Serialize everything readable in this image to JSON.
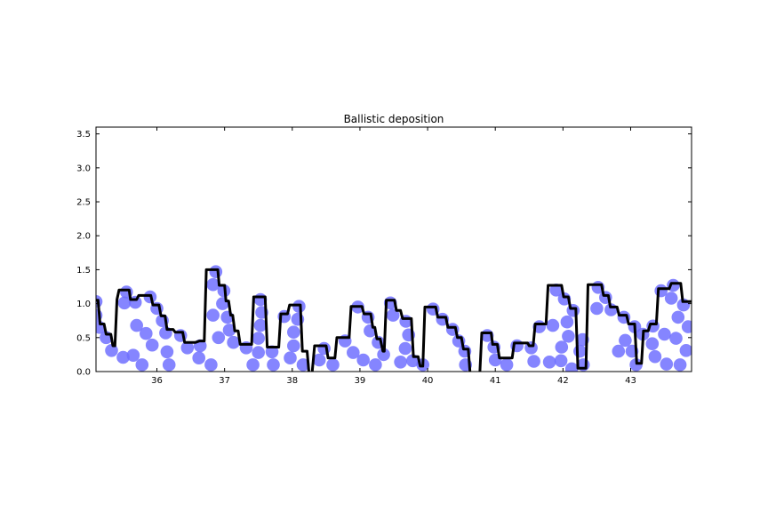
{
  "chart_data": {
    "type": "scatter",
    "title": "Ballistic deposition",
    "xlabel": "",
    "ylabel": "",
    "xlim": [
      35.1,
      43.9
    ],
    "ylim": [
      0.0,
      3.6
    ],
    "xticks": [
      "36",
      "37",
      "38",
      "39",
      "40",
      "41",
      "42",
      "43"
    ],
    "yticks": [
      "0.0",
      "0.5",
      "1.0",
      "1.5",
      "2.0",
      "2.5",
      "3.0",
      "3.5"
    ],
    "grid": false,
    "legend": "none",
    "colors": {
      "particles": "#7070ff",
      "surface": "#000000"
    },
    "series": [
      {
        "type": "scatter",
        "points": [
          [
            35.1,
            1.03
          ],
          [
            35.1,
            0.83
          ],
          [
            35.15,
            0.65
          ],
          [
            35.25,
            0.5
          ],
          [
            35.33,
            0.31
          ],
          [
            35.5,
            0.21
          ],
          [
            35.52,
            1.01
          ],
          [
            35.55,
            1.17
          ],
          [
            35.65,
            0.24
          ],
          [
            35.68,
            1.02
          ],
          [
            35.7,
            0.68
          ],
          [
            35.78,
            0.1
          ],
          [
            35.84,
            0.56
          ],
          [
            35.9,
            1.1
          ],
          [
            35.93,
            0.39
          ],
          [
            36.0,
            0.93
          ],
          [
            36.08,
            0.75
          ],
          [
            36.13,
            0.57
          ],
          [
            36.15,
            0.29
          ],
          [
            36.18,
            0.1
          ],
          [
            36.35,
            0.53
          ],
          [
            36.45,
            0.35
          ],
          [
            36.62,
            0.2
          ],
          [
            36.64,
            0.38
          ],
          [
            36.8,
            0.1
          ],
          [
            36.83,
            1.28
          ],
          [
            36.87,
            1.47
          ],
          [
            36.83,
            0.83
          ],
          [
            36.91,
            0.5
          ],
          [
            36.97,
            1.0
          ],
          [
            36.99,
            1.19
          ],
          [
            37.04,
            0.8
          ],
          [
            37.07,
            0.61
          ],
          [
            37.13,
            0.43
          ],
          [
            37.32,
            0.35
          ],
          [
            37.42,
            0.1
          ],
          [
            37.5,
            0.28
          ],
          [
            37.5,
            0.49
          ],
          [
            37.53,
            0.68
          ],
          [
            37.55,
            0.87
          ],
          [
            37.53,
            1.06
          ],
          [
            37.7,
            0.29
          ],
          [
            37.72,
            0.1
          ],
          [
            37.88,
            0.81
          ],
          [
            37.97,
            0.2
          ],
          [
            38.02,
            0.38
          ],
          [
            38.02,
            0.58
          ],
          [
            38.08,
            0.77
          ],
          [
            38.1,
            0.96
          ],
          [
            38.16,
            0.1
          ],
          [
            38.4,
            0.17
          ],
          [
            38.47,
            0.34
          ],
          [
            38.6,
            0.1
          ],
          [
            38.78,
            0.45
          ],
          [
            38.9,
            0.28
          ],
          [
            38.97,
            0.95
          ],
          [
            39.05,
            0.17
          ],
          [
            39.12,
            0.8
          ],
          [
            39.15,
            0.6
          ],
          [
            39.23,
            0.1
          ],
          [
            39.27,
            0.43
          ],
          [
            39.35,
            0.25
          ],
          [
            39.45,
            1.01
          ],
          [
            39.49,
            0.83
          ],
          [
            39.6,
            0.14
          ],
          [
            39.67,
            0.34
          ],
          [
            39.68,
            0.74
          ],
          [
            39.72,
            0.54
          ],
          [
            39.78,
            0.16
          ],
          [
            39.93,
            0.1
          ],
          [
            40.08,
            0.92
          ],
          [
            40.22,
            0.77
          ],
          [
            40.37,
            0.62
          ],
          [
            40.46,
            0.45
          ],
          [
            40.55,
            0.3
          ],
          [
            40.56,
            0.1
          ],
          [
            40.88,
            0.53
          ],
          [
            40.98,
            0.36
          ],
          [
            41.0,
            0.17
          ],
          [
            41.17,
            0.1
          ],
          [
            41.32,
            0.38
          ],
          [
            41.53,
            0.35
          ],
          [
            41.57,
            0.15
          ],
          [
            41.65,
            0.66
          ],
          [
            41.8,
            0.14
          ],
          [
            41.85,
            0.68
          ],
          [
            41.9,
            1.2
          ],
          [
            41.97,
            0.16
          ],
          [
            41.98,
            0.36
          ],
          [
            42.02,
            1.07
          ],
          [
            42.06,
            0.73
          ],
          [
            42.08,
            0.52
          ],
          [
            42.13,
            0.04
          ],
          [
            42.15,
            0.9
          ],
          [
            42.25,
            0.3
          ],
          [
            42.29,
            0.47
          ],
          [
            42.3,
            0.1
          ],
          [
            42.5,
            0.93
          ],
          [
            42.52,
            1.24
          ],
          [
            42.63,
            1.09
          ],
          [
            42.71,
            0.91
          ],
          [
            42.82,
            0.3
          ],
          [
            42.9,
            0.8
          ],
          [
            42.92,
            0.46
          ],
          [
            43.02,
            0.3
          ],
          [
            43.06,
            0.66
          ],
          [
            43.08,
            0.1
          ],
          [
            43.18,
            0.55
          ],
          [
            43.32,
            0.41
          ],
          [
            43.33,
            0.67
          ],
          [
            43.36,
            0.22
          ],
          [
            43.45,
            1.19
          ],
          [
            43.5,
            0.55
          ],
          [
            43.53,
            0.11
          ],
          [
            43.6,
            1.08
          ],
          [
            43.63,
            1.27
          ],
          [
            43.67,
            0.49
          ],
          [
            43.7,
            0.8
          ],
          [
            43.73,
            0.1
          ],
          [
            43.78,
            0.98
          ],
          [
            43.82,
            0.31
          ],
          [
            43.85,
            0.66
          ]
        ]
      },
      {
        "type": "line",
        "name": "",
        "points": [
          [
            35.1,
            1.05
          ],
          [
            35.13,
            1.05
          ],
          [
            35.16,
            0.7
          ],
          [
            35.22,
            0.7
          ],
          [
            35.25,
            0.55
          ],
          [
            35.32,
            0.55
          ],
          [
            35.35,
            0.38
          ],
          [
            35.38,
            0.38
          ],
          [
            35.41,
            1.06
          ],
          [
            35.44,
            1.2
          ],
          [
            35.59,
            1.2
          ],
          [
            35.61,
            1.06
          ],
          [
            35.7,
            1.06
          ],
          [
            35.73,
            1.12
          ],
          [
            35.91,
            1.12
          ],
          [
            35.94,
            0.98
          ],
          [
            36.03,
            0.98
          ],
          [
            36.06,
            0.82
          ],
          [
            36.12,
            0.82
          ],
          [
            36.15,
            0.62
          ],
          [
            36.24,
            0.62
          ],
          [
            36.27,
            0.58
          ],
          [
            36.38,
            0.58
          ],
          [
            36.41,
            0.43
          ],
          [
            36.57,
            0.43
          ],
          [
            36.63,
            0.45
          ],
          [
            36.7,
            0.45
          ],
          [
            36.73,
            1.5
          ],
          [
            36.9,
            1.5
          ],
          [
            36.92,
            1.27
          ],
          [
            37.0,
            1.27
          ],
          [
            37.02,
            1.04
          ],
          [
            37.06,
            1.04
          ],
          [
            37.09,
            0.83
          ],
          [
            37.12,
            0.83
          ],
          [
            37.15,
            0.6
          ],
          [
            37.2,
            0.6
          ],
          [
            37.23,
            0.4
          ],
          [
            37.4,
            0.4
          ],
          [
            37.43,
            1.1
          ],
          [
            37.6,
            1.1
          ],
          [
            37.63,
            0.36
          ],
          [
            37.8,
            0.36
          ],
          [
            37.83,
            0.85
          ],
          [
            37.93,
            0.85
          ],
          [
            37.96,
            0.98
          ],
          [
            38.12,
            0.98
          ],
          [
            38.15,
            0.3
          ],
          [
            38.22,
            0.3
          ],
          [
            38.25,
            -0.05
          ],
          [
            38.29,
            -0.05
          ],
          [
            38.33,
            0.38
          ],
          [
            38.5,
            0.38
          ],
          [
            38.53,
            0.2
          ],
          [
            38.63,
            0.2
          ],
          [
            38.66,
            0.5
          ],
          [
            38.84,
            0.5
          ],
          [
            38.87,
            0.96
          ],
          [
            39.03,
            0.96
          ],
          [
            39.06,
            0.85
          ],
          [
            39.16,
            0.85
          ],
          [
            39.19,
            0.65
          ],
          [
            39.22,
            0.65
          ],
          [
            39.25,
            0.48
          ],
          [
            39.3,
            0.48
          ],
          [
            39.34,
            0.3
          ],
          [
            39.36,
            0.3
          ],
          [
            39.39,
            1.05
          ],
          [
            39.51,
            1.05
          ],
          [
            39.54,
            0.9
          ],
          [
            39.6,
            0.9
          ],
          [
            39.63,
            0.78
          ],
          [
            39.76,
            0.78
          ],
          [
            39.79,
            0.22
          ],
          [
            39.86,
            0.22
          ],
          [
            39.89,
            0.08
          ],
          [
            39.93,
            0.08
          ],
          [
            39.96,
            0.95
          ],
          [
            40.12,
            0.95
          ],
          [
            40.15,
            0.8
          ],
          [
            40.27,
            0.8
          ],
          [
            40.3,
            0.65
          ],
          [
            40.41,
            0.65
          ],
          [
            40.44,
            0.5
          ],
          [
            40.5,
            0.5
          ],
          [
            40.53,
            0.33
          ],
          [
            40.6,
            0.33
          ],
          [
            40.63,
            -0.05
          ],
          [
            40.77,
            -0.05
          ],
          [
            40.8,
            0.57
          ],
          [
            40.94,
            0.57
          ],
          [
            40.96,
            0.4
          ],
          [
            41.03,
            0.4
          ],
          [
            41.06,
            0.2
          ],
          [
            41.25,
            0.2
          ],
          [
            41.28,
            0.42
          ],
          [
            41.48,
            0.42
          ],
          [
            41.5,
            0.38
          ],
          [
            41.56,
            0.38
          ],
          [
            41.59,
            0.7
          ],
          [
            41.75,
            0.7
          ],
          [
            41.78,
            1.27
          ],
          [
            41.98,
            1.27
          ],
          [
            42.01,
            1.1
          ],
          [
            42.08,
            1.1
          ],
          [
            42.11,
            0.93
          ],
          [
            42.19,
            0.93
          ],
          [
            42.22,
            0.05
          ],
          [
            42.34,
            0.05
          ],
          [
            42.37,
            1.28
          ],
          [
            42.57,
            1.28
          ],
          [
            42.6,
            1.12
          ],
          [
            42.67,
            1.12
          ],
          [
            42.7,
            0.95
          ],
          [
            42.8,
            0.95
          ],
          [
            42.83,
            0.83
          ],
          [
            42.94,
            0.83
          ],
          [
            42.97,
            0.7
          ],
          [
            43.06,
            0.7
          ],
          [
            43.09,
            0.12
          ],
          [
            43.16,
            0.12
          ],
          [
            43.19,
            0.6
          ],
          [
            43.26,
            0.6
          ],
          [
            43.29,
            0.7
          ],
          [
            43.38,
            0.7
          ],
          [
            43.41,
            1.22
          ],
          [
            43.57,
            1.22
          ],
          [
            43.6,
            1.3
          ],
          [
            43.74,
            1.3
          ],
          [
            43.77,
            1.03
          ],
          [
            43.9,
            1.03
          ]
        ]
      }
    ]
  }
}
